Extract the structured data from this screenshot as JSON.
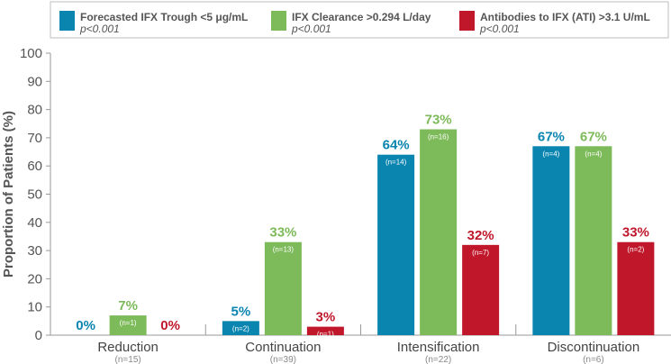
{
  "chart_data": {
    "type": "bar",
    "title": "",
    "xlabel": "",
    "ylabel": "Proportion of Patients (%)",
    "ylim": [
      0,
      100
    ],
    "yticks": [
      0,
      10,
      20,
      30,
      40,
      50,
      60,
      70,
      80,
      90,
      100
    ],
    "grid": false,
    "legend_position": "top",
    "categories": [
      "Reduction",
      "Continuation",
      "Intensification",
      "Discontinuation"
    ],
    "category_counts": [
      "(n=15)",
      "(n=39)",
      "(n=22)",
      "(n=6)"
    ],
    "series": [
      {
        "name": "Forecasted IFX Trough <5 μg/mL",
        "p_value": "p<0.001",
        "color": "#0a85b0",
        "values": [
          0,
          5,
          64,
          67
        ],
        "value_labels": [
          "0%",
          "5%",
          "64%",
          "67%"
        ],
        "n_labels": [
          "",
          "(n=2)",
          "(n=14)",
          "(n=4)"
        ]
      },
      {
        "name": "IFX Clearance >0.294 L/day",
        "p_value": "p<0.001",
        "color": "#7dba5a",
        "values": [
          7,
          33,
          73,
          67
        ],
        "value_labels": [
          "7%",
          "33%",
          "73%",
          "67%"
        ],
        "n_labels": [
          "(n=1)",
          "(n=13)",
          "(n=16)",
          "(n=4)"
        ]
      },
      {
        "name": "Antibodies to IFX (ATI) >3.1 U/mL",
        "p_value": "p<0.001",
        "color": "#c0172b",
        "values": [
          0,
          3,
          32,
          33
        ],
        "value_labels": [
          "0%",
          "3%",
          "32%",
          "33%"
        ],
        "n_labels": [
          "",
          "(n=1)",
          "(n=7)",
          "(n=2)"
        ]
      }
    ]
  }
}
